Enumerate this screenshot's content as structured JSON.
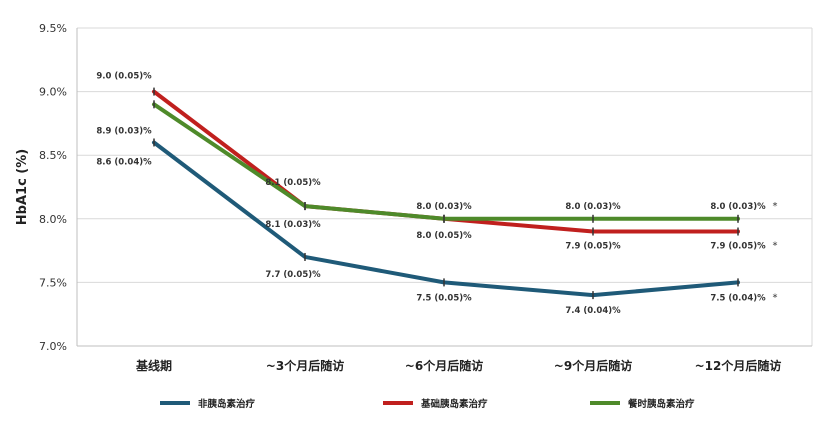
{
  "chart_data": {
    "type": "line",
    "ylabel": "HbA1c (%)",
    "xlabel": "",
    "title": "",
    "ylim": [
      7.0,
      9.5
    ],
    "yticks": [
      "7.0%",
      "7.5%",
      "8.0%",
      "8.5%",
      "9.0%",
      "9.5%"
    ],
    "categories": [
      "基线期",
      "~3个月后随访",
      "~6个月后随访",
      "~9个月后随访",
      "~12个月后随访"
    ],
    "grid": true,
    "legend_position": "bottom",
    "series": [
      {
        "name": "非胰岛素治疗",
        "color": "#1f5a78",
        "values": [
          8.6,
          7.7,
          7.5,
          7.4,
          7.5
        ],
        "labels": [
          "8.6 (0.04)%",
          "7.7 (0.05)%",
          "7.5 (0.05)%",
          "7.4 (0.04)%",
          "7.5 (0.04)%"
        ]
      },
      {
        "name": "基础胰岛素治疗",
        "color": "#c0201e",
        "values": [
          9.0,
          8.1,
          8.0,
          7.9,
          7.9
        ],
        "labels": [
          "9.0 (0.05)%",
          "8.1 (0.05)%",
          "8.0 (0.05)%",
          "7.9 (0.05)%",
          "7.9 (0.05)%"
        ]
      },
      {
        "name": "餐时胰岛素治疗",
        "color": "#4e8a2a",
        "values": [
          8.9,
          8.1,
          8.0,
          8.0,
          8.0
        ],
        "labels": [
          "8.9 (0.03)%",
          "8.1 (0.03)%",
          "8.0 (0.03)%",
          "8.0 (0.03)%",
          "8.0 (0.03)%"
        ]
      }
    ],
    "significance_marker": "*"
  }
}
